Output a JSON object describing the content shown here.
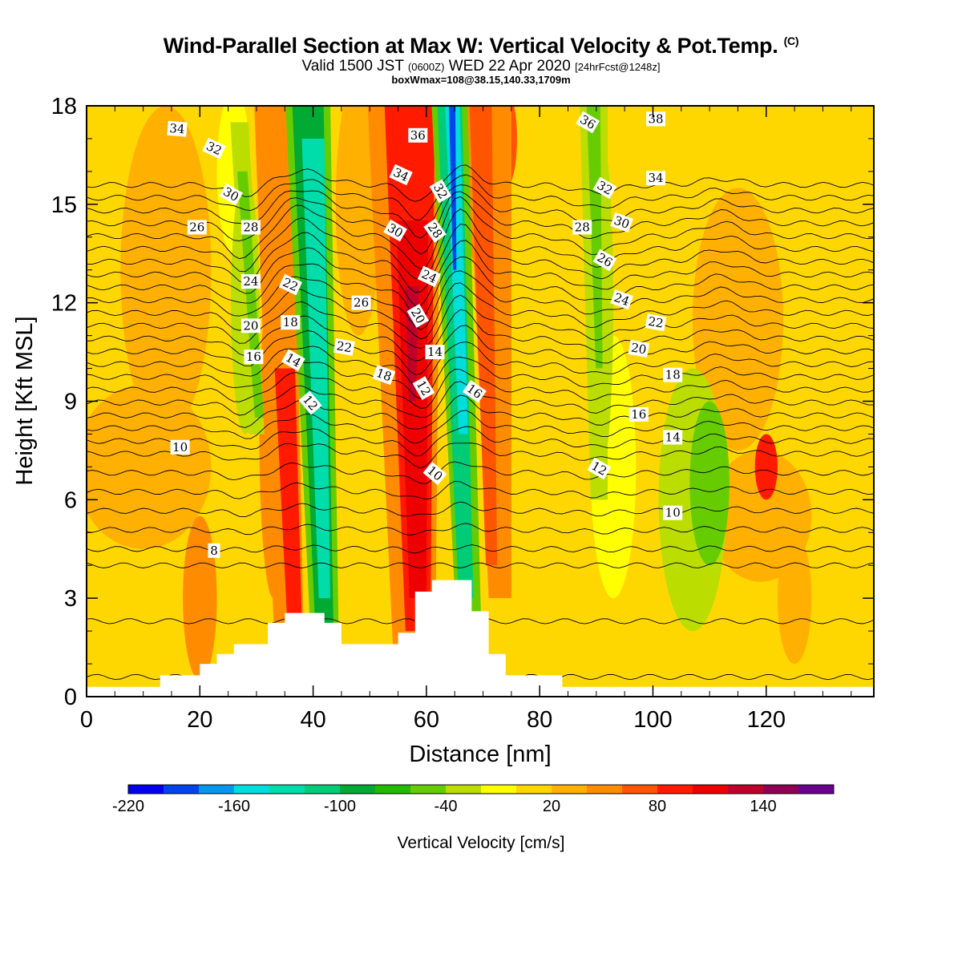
{
  "header": {
    "title_main": "Wind-Parallel Section at Max W: Vertical Velocity & Pot.Temp.",
    "title_copyright": "(C)",
    "valid_prefix": "Valid 1500 JST",
    "valid_utc": "(0600Z)",
    "valid_date": "WED 22 Apr 2020",
    "forecast_info": "[24hrFcst@1248z]",
    "box_info": "boxWmax=108@38.15,140.33,1709m"
  },
  "chart_data": {
    "type": "heatmap",
    "xlabel": "Distance [nm]",
    "ylabel": "Height [Kft MSL]",
    "xlim": [
      0,
      139
    ],
    "ylim": [
      0,
      18
    ],
    "x_ticks": [
      0,
      20,
      40,
      60,
      80,
      100,
      120
    ],
    "y_ticks": [
      0,
      3,
      6,
      9,
      12,
      15,
      18
    ],
    "colorbar": {
      "label": "Vertical Velocity [cm/s]",
      "range": [
        -220,
        180
      ],
      "step": 20,
      "tick_labels": [
        -220,
        -160,
        -100,
        -40,
        20,
        80,
        140
      ],
      "colors": [
        "#0000ee",
        "#0044ee",
        "#0099ee",
        "#00dddd",
        "#00ddaa",
        "#00cc77",
        "#00aa33",
        "#22bb00",
        "#66cc00",
        "#bbdd00",
        "#ffff00",
        "#ffd700",
        "#ffb000",
        "#ff8c00",
        "#ff5500",
        "#ff1a00",
        "#ee0000",
        "#c0002a",
        "#900055",
        "#6a0090"
      ]
    },
    "velocity_bands": [
      {
        "x_top": 26,
        "x_bottom": 30,
        "w": -60
      },
      {
        "x_top": 36,
        "x_bottom": 42,
        "w": -140
      },
      {
        "x_top": 58,
        "x_bottom": 59,
        "w": 120
      },
      {
        "x_top": 64,
        "x_bottom": 67,
        "w": -190
      },
      {
        "x_top": 90,
        "x_bottom": 91,
        "w": -60
      },
      {
        "x_top": 110,
        "x_bottom": 110,
        "w": -70
      }
    ],
    "terrain": [
      [
        0,
        0.3
      ],
      [
        13,
        0.3
      ],
      [
        13,
        0.65
      ],
      [
        20,
        0.65
      ],
      [
        20,
        1.0
      ],
      [
        23,
        1.0
      ],
      [
        23,
        1.3
      ],
      [
        26,
        1.3
      ],
      [
        26,
        1.6
      ],
      [
        32,
        1.6
      ],
      [
        32,
        2.25
      ],
      [
        35,
        2.25
      ],
      [
        35,
        2.55
      ],
      [
        42,
        2.55
      ],
      [
        42,
        2.25
      ],
      [
        45,
        2.25
      ],
      [
        45,
        1.6
      ],
      [
        55,
        1.6
      ],
      [
        55,
        1.95
      ],
      [
        58,
        1.95
      ],
      [
        58,
        3.2
      ],
      [
        61,
        3.2
      ],
      [
        61,
        3.55
      ],
      [
        68,
        3.55
      ],
      [
        68,
        2.6
      ],
      [
        71,
        2.6
      ],
      [
        71,
        1.3
      ],
      [
        74,
        1.3
      ],
      [
        74,
        0.65
      ],
      [
        84,
        0.65
      ],
      [
        84,
        0.3
      ],
      [
        139,
        0.3
      ]
    ],
    "contour_labels": [
      {
        "text": "34",
        "x": 16,
        "y": 17.3,
        "rot": 5
      },
      {
        "text": "32",
        "x": 22.5,
        "y": 16.7,
        "rot": 25
      },
      {
        "text": "30",
        "x": 25.5,
        "y": 15.3,
        "rot": 30
      },
      {
        "text": "26",
        "x": 19.5,
        "y": 14.3,
        "rot": 0
      },
      {
        "text": "28",
        "x": 29,
        "y": 14.3,
        "rot": 0
      },
      {
        "text": "24",
        "x": 29,
        "y": 12.65,
        "rot": 0
      },
      {
        "text": "22",
        "x": 36,
        "y": 12.55,
        "rot": 25
      },
      {
        "text": "20",
        "x": 29,
        "y": 11.3,
        "rot": 0
      },
      {
        "text": "18",
        "x": 36,
        "y": 11.4,
        "rot": 0
      },
      {
        "text": "16",
        "x": 29.5,
        "y": 10.35,
        "rot": 0
      },
      {
        "text": "14",
        "x": 36.5,
        "y": 10.25,
        "rot": 30
      },
      {
        "text": "12",
        "x": 39.5,
        "y": 8.95,
        "rot": 50
      },
      {
        "text": "10",
        "x": 16.5,
        "y": 7.6,
        "rot": 0
      },
      {
        "text": "8",
        "x": 22.5,
        "y": 4.45,
        "rot": 0
      },
      {
        "text": "26",
        "x": 48.5,
        "y": 12.0,
        "rot": 0
      },
      {
        "text": "22",
        "x": 45.5,
        "y": 10.65,
        "rot": 10
      },
      {
        "text": "18",
        "x": 52.5,
        "y": 9.8,
        "rot": 20
      },
      {
        "text": "36",
        "x": 58.5,
        "y": 17.1,
        "rot": 0
      },
      {
        "text": "34",
        "x": 55.5,
        "y": 15.9,
        "rot": 25
      },
      {
        "text": "30",
        "x": 54.5,
        "y": 14.2,
        "rot": 30
      },
      {
        "text": "32",
        "x": 62.5,
        "y": 15.4,
        "rot": 60
      },
      {
        "text": "28",
        "x": 61.5,
        "y": 14.2,
        "rot": 55
      },
      {
        "text": "24",
        "x": 60.5,
        "y": 12.8,
        "rot": 25
      },
      {
        "text": "20",
        "x": 58.5,
        "y": 11.6,
        "rot": 60
      },
      {
        "text": "14",
        "x": 61.5,
        "y": 10.5,
        "rot": 0
      },
      {
        "text": "12",
        "x": 59.5,
        "y": 9.4,
        "rot": 60
      },
      {
        "text": "16",
        "x": 68.5,
        "y": 9.3,
        "rot": 35
      },
      {
        "text": "10",
        "x": 61.5,
        "y": 6.8,
        "rot": 40
      },
      {
        "text": "36",
        "x": 88.5,
        "y": 17.5,
        "rot": 30
      },
      {
        "text": "38",
        "x": 100.5,
        "y": 17.6,
        "rot": 0
      },
      {
        "text": "34",
        "x": 100.5,
        "y": 15.8,
        "rot": 0
      },
      {
        "text": "32",
        "x": 91.5,
        "y": 15.5,
        "rot": 30
      },
      {
        "text": "30",
        "x": 94.5,
        "y": 14.45,
        "rot": 20
      },
      {
        "text": "28",
        "x": 87.5,
        "y": 14.3,
        "rot": 0
      },
      {
        "text": "26",
        "x": 91.5,
        "y": 13.3,
        "rot": 30
      },
      {
        "text": "24",
        "x": 94.5,
        "y": 12.1,
        "rot": 20
      },
      {
        "text": "22",
        "x": 100.5,
        "y": 11.4,
        "rot": 10
      },
      {
        "text": "20",
        "x": 97.5,
        "y": 10.6,
        "rot": 10
      },
      {
        "text": "18",
        "x": 103.5,
        "y": 9.8,
        "rot": 0
      },
      {
        "text": "16",
        "x": 97.5,
        "y": 8.6,
        "rot": 0
      },
      {
        "text": "14",
        "x": 103.5,
        "y": 7.9,
        "rot": 0
      },
      {
        "text": "12",
        "x": 90.5,
        "y": 6.95,
        "rot": 30
      },
      {
        "text": "10",
        "x": 103.5,
        "y": 5.6,
        "rot": 0
      }
    ]
  }
}
